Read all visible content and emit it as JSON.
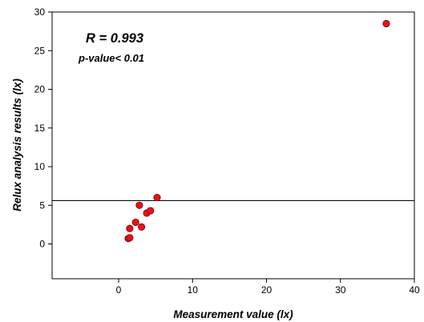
{
  "chart_data": {
    "type": "scatter",
    "title": "",
    "xlabel": "Measurement value (lx)",
    "ylabel": "Relux analysis results (lx)",
    "xlim": [
      -9,
      40
    ],
    "ylim": [
      -4.5,
      30
    ],
    "x_ticks": [
      0,
      10,
      20,
      30,
      40
    ],
    "y_ticks": [
      0,
      5,
      10,
      15,
      20,
      25,
      30
    ],
    "grid": false,
    "legend": "none",
    "points": [
      {
        "x": 1.3,
        "y": 0.7
      },
      {
        "x": 1.5,
        "y": 0.8
      },
      {
        "x": 1.5,
        "y": 2.0
      },
      {
        "x": 2.3,
        "y": 2.8
      },
      {
        "x": 2.8,
        "y": 5.0
      },
      {
        "x": 3.1,
        "y": 2.2
      },
      {
        "x": 3.8,
        "y": 4.0
      },
      {
        "x": 4.3,
        "y": 4.3
      },
      {
        "x": 5.2,
        "y": 6.0
      },
      {
        "x": 36.2,
        "y": 28.5
      }
    ],
    "reference_line": {
      "y": 5.6
    },
    "annotations": {
      "r_value": "R = 0.993",
      "p_value": "p-value< 0.01"
    },
    "colors": {
      "marker_fill": "#e8101a",
      "marker_edge": "#7a0a0a",
      "axis": "#000000",
      "reference_line": "#000000"
    }
  }
}
